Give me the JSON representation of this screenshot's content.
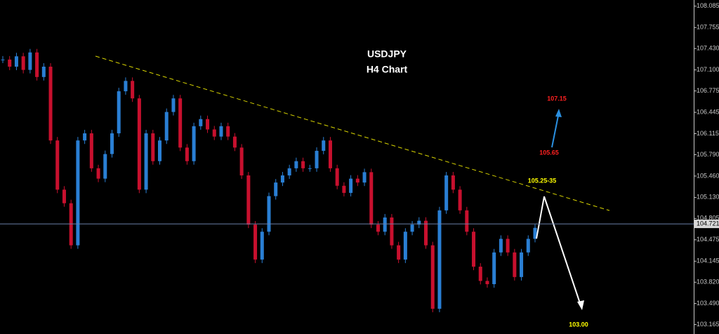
{
  "chart_data": {
    "type": "candlestick",
    "title": "USDJPY",
    "subtitle": "H4 Chart",
    "values": [
      107.26,
      107.15,
      107.31,
      107.1,
      107.37,
      106.99,
      107.15,
      106.01,
      105.25,
      105.04,
      104.39,
      106.01,
      106.12,
      105.58,
      105.42,
      105.8,
      106.12,
      106.77,
      106.93,
      106.66,
      105.25,
      106.12,
      105.69,
      106.01,
      106.45,
      106.66,
      105.9,
      105.69,
      106.23,
      106.34,
      106.18,
      106.07,
      106.23,
      106.07,
      105.9,
      105.47,
      104.71,
      104.17,
      104.6,
      105.15,
      105.36,
      105.47,
      105.58,
      105.69,
      105.58,
      105.58,
      105.85,
      106.01,
      105.58,
      105.31,
      105.2,
      105.42,
      105.36,
      105.52,
      104.71,
      104.6,
      104.82,
      104.39,
      104.17,
      104.6,
      104.71,
      104.77,
      104.39,
      103.41,
      104.93,
      105.47,
      105.25,
      104.93,
      104.6,
      104.06,
      103.84,
      103.79,
      104.28,
      104.49,
      104.28,
      103.9,
      104.28,
      104.49,
      104.66
    ],
    "up_color": "#2a7fd4",
    "down_color": "#c8102e",
    "ylim": [
      103.02,
      108.18
    ],
    "yticks": [
      {
        "value": 108.085,
        "label": "108.085"
      },
      {
        "value": 107.755,
        "label": "107.755"
      },
      {
        "value": 107.43,
        "label": "107.430"
      },
      {
        "value": 107.1,
        "label": "107.100"
      },
      {
        "value": 106.775,
        "label": "106.775"
      },
      {
        "value": 106.445,
        "label": "106.445"
      },
      {
        "value": 106.115,
        "label": "106.115"
      },
      {
        "value": 105.79,
        "label": "105.790"
      },
      {
        "value": 105.46,
        "label": "105.460"
      },
      {
        "value": 105.13,
        "label": "105.130"
      },
      {
        "value": 104.805,
        "label": "104.805"
      },
      {
        "value": 104.475,
        "label": "104.475"
      },
      {
        "value": 104.145,
        "label": "104.145"
      },
      {
        "value": 103.82,
        "label": "103.820"
      },
      {
        "value": 103.49,
        "label": "103.490"
      },
      {
        "value": 103.165,
        "label": "103.165"
      }
    ],
    "last_price": 104.721,
    "annotations": [
      "107.15",
      "105.65",
      "105.25-35",
      "103.00"
    ]
  }
}
